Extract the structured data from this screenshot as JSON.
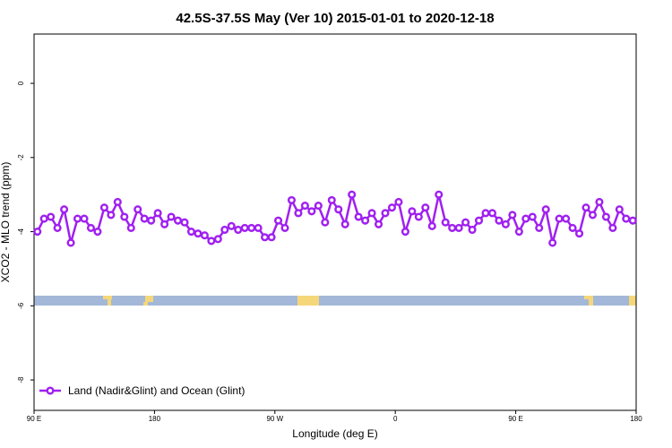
{
  "chart_data": {
    "type": "line",
    "title": "42.5S-37.5S May (Ver 10)   2015-01-01 to 2020-12-18",
    "x_label": "Longitude (deg E)",
    "y_label": "XCO2 - MLO trend (ppm)",
    "xlim": [
      90,
      540
    ],
    "xticks": [
      {
        "value": 90,
        "label": "90 E"
      },
      180,
      {
        "value": 270,
        "label": "90 W"
      },
      {
        "value": 360,
        "label": "0"
      },
      {
        "value": 450,
        "label": "90 E"
      },
      {
        "value": 540,
        "label": "180"
      }
    ],
    "ylim": [
      -8.82,
      1.33
    ],
    "yticks": [
      0,
      -2,
      -4,
      -6,
      -8
    ],
    "legend": "bottom-left",
    "x": [
      92.5,
      97.5,
      102.5,
      107.5,
      112.5,
      117.5,
      122.5,
      127.5,
      132.5,
      137.5,
      142.5,
      147.5,
      152.5,
      157.5,
      162.5,
      167.5,
      172.5,
      177.5,
      182.5,
      187.5,
      192.5,
      197.5,
      202.5,
      207.5,
      212.5,
      217.5,
      222.5,
      227.5,
      232.5,
      237.5,
      242.5,
      247.5,
      252.5,
      257.5,
      262.5,
      267.5,
      272.5,
      277.5,
      282.5,
      287.5,
      292.5,
      297.5,
      302.5,
      307.5,
      312.5,
      317.5,
      322.5,
      327.5,
      332.5,
      337.5,
      342.5,
      347.5,
      352.5,
      357.5,
      362.5,
      367.5,
      372.5,
      377.5,
      382.5,
      387.5,
      392.5,
      397.5,
      402.5,
      407.5,
      412.5,
      417.5,
      422.5,
      427.5,
      432.5,
      437.5,
      442.5,
      447.5,
      452.5,
      457.5,
      462.5,
      467.5,
      472.5,
      477.5,
      482.5,
      487.5,
      492.5,
      497.5,
      502.5,
      507.5,
      512.5,
      517.5,
      522.5,
      527.5,
      532.5,
      537.5
    ],
    "series": [
      {
        "name": "Land (Nadir&Glint) and Ocean (Glint)",
        "color": "#a020f0",
        "values": [
          -4.0,
          -3.65,
          -3.6,
          -3.9,
          -3.4,
          -4.3,
          -3.65,
          -3.65,
          -3.9,
          -4.0,
          -3.35,
          -3.55,
          -3.2,
          -3.6,
          -3.9,
          -3.4,
          -3.65,
          -3.7,
          -3.5,
          -3.8,
          -3.6,
          -3.7,
          -3.75,
          -4.0,
          -4.05,
          -4.1,
          -4.25,
          -4.2,
          -3.95,
          -3.85,
          -3.95,
          -3.9,
          -3.9,
          -3.9,
          -4.15,
          -4.15,
          -3.7,
          -3.9,
          -3.15,
          -3.5,
          -3.3,
          -3.45,
          -3.3,
          -3.75,
          -3.15,
          -3.4,
          -3.8,
          -3.0,
          -3.6,
          -3.7,
          -3.5,
          -3.8,
          -3.5,
          -3.35,
          -3.2,
          -4.0,
          -3.45,
          -3.6,
          -3.35,
          -3.85,
          -3.0,
          -3.75,
          -3.9,
          -3.9,
          -3.75,
          -3.95,
          -3.7,
          -3.5,
          -3.5,
          -3.7,
          -3.8,
          -3.55,
          -4.0,
          -3.65,
          -3.6,
          -3.9,
          -3.4,
          -4.3,
          -3.65,
          -3.65,
          -3.9,
          -4.05,
          -3.35,
          -3.55,
          -3.2,
          -3.6,
          -3.9,
          -3.4,
          -3.65,
          -3.7
        ]
      }
    ]
  }
}
